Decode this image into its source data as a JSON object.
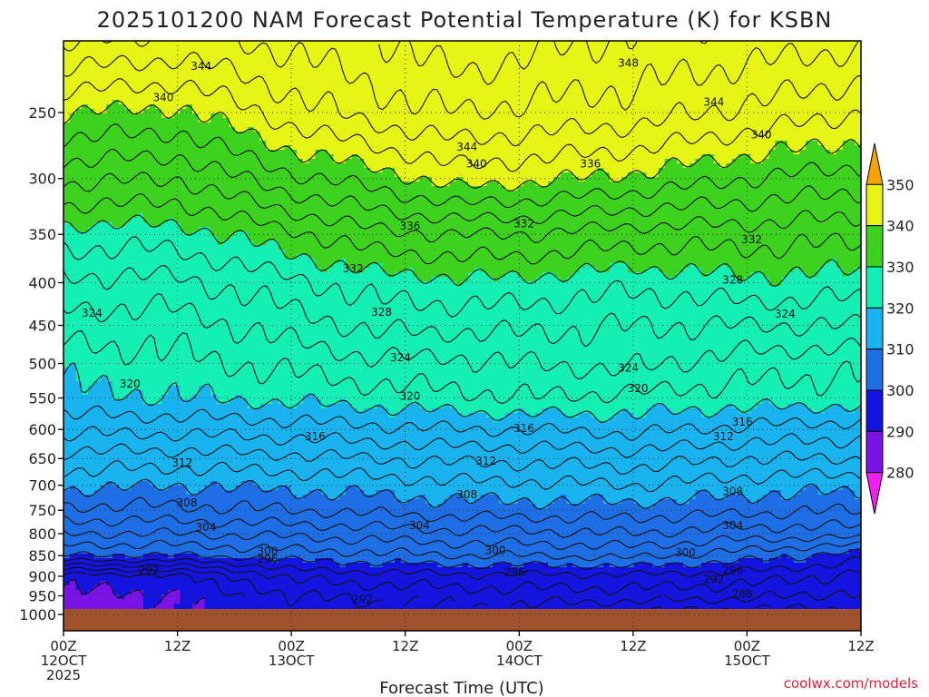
{
  "chart_data": {
    "type": "contour",
    "title": "2025101200 NAM Forecast Potential Temperature (K) for KSBN",
    "xlabel": "Forecast Time (UTC)",
    "ylabel": "",
    "y_ticks": [
      250,
      300,
      350,
      400,
      450,
      500,
      550,
      600,
      650,
      700,
      750,
      800,
      850,
      900,
      950,
      1000
    ],
    "y_range": [
      200,
      1050
    ],
    "x_ticks": [
      {
        "hour": 0,
        "line1": "00Z",
        "line2": "12OCT",
        "line3": "2025"
      },
      {
        "hour": 12,
        "line1": "12Z",
        "line2": "",
        "line3": ""
      },
      {
        "hour": 24,
        "line1": "00Z",
        "line2": "13OCT",
        "line3": ""
      },
      {
        "hour": 36,
        "line1": "12Z",
        "line2": "",
        "line3": ""
      },
      {
        "hour": 48,
        "line1": "00Z",
        "line2": "14OCT",
        "line3": ""
      },
      {
        "hour": 60,
        "line1": "12Z",
        "line2": "",
        "line3": ""
      },
      {
        "hour": 72,
        "line1": "00Z",
        "line2": "15OCT",
        "line3": ""
      },
      {
        "hour": 84,
        "line1": "12Z",
        "line2": "",
        "line3": ""
      }
    ],
    "x_range": [
      0,
      84
    ],
    "colorbar": {
      "levels": [
        280,
        290,
        300,
        310,
        320,
        330,
        340,
        350
      ],
      "labels": [
        "280",
        "290",
        "300",
        "310",
        "320",
        "330",
        "340",
        "350"
      ],
      "colors": [
        "#f21ef2",
        "#7a14e6",
        "#1414e0",
        "#1e6fe6",
        "#19b4f0",
        "#14f0b4",
        "#3cd21e",
        "#e6f514",
        "#f5a500"
      ]
    },
    "ground_pressure": 985,
    "contour_interval_k": 2,
    "theta_profiles": [
      {
        "hour": 0,
        "pressures": [
          200,
          250,
          300,
          350,
          400,
          450,
          500,
          550,
          600,
          650,
          700,
          750,
          800,
          850,
          900,
          950,
          985
        ],
        "theta": [
          347,
          340,
          334.5,
          329,
          325.5,
          323,
          320.8,
          319.5,
          316.5,
          313.2,
          310.5,
          307.5,
          304,
          300,
          291,
          289.5,
          289
        ]
      },
      {
        "hour": 12,
        "pressures": [
          200,
          250,
          300,
          350,
          400,
          450,
          500,
          550,
          600,
          650,
          700,
          750,
          800,
          850,
          900,
          950,
          985
        ],
        "theta": [
          346,
          339.5,
          334,
          329,
          325.5,
          323,
          321.5,
          320,
          316.5,
          313,
          310,
          307.5,
          304,
          300,
          291.5,
          290,
          289.5
        ]
      },
      {
        "hour": 24,
        "pressures": [
          200,
          250,
          300,
          350,
          400,
          450,
          500,
          550,
          600,
          650,
          700,
          750,
          800,
          850,
          900,
          950,
          985
        ],
        "theta": [
          347,
          343,
          337.5,
          331.5,
          327.5,
          325,
          322.5,
          320.5,
          317,
          313.5,
          310.5,
          308,
          304.5,
          301,
          296.5,
          294,
          293
        ]
      },
      {
        "hour": 33,
        "pressures": [
          200,
          250,
          300,
          350,
          400,
          450,
          500,
          550,
          600,
          650,
          700,
          750,
          800,
          850,
          900,
          950,
          985
        ],
        "theta": [
          348,
          345,
          339,
          333.5,
          329,
          326.5,
          323.5,
          321,
          317.5,
          314,
          311,
          308.5,
          305,
          301.5,
          297,
          294.5,
          293.5
        ]
      },
      {
        "hour": 42,
        "pressures": [
          200,
          250,
          300,
          350,
          400,
          450,
          500,
          550,
          600,
          650,
          700,
          750,
          800,
          850,
          900,
          950,
          985
        ],
        "theta": [
          350,
          346,
          341,
          334,
          329.5,
          326.5,
          323.5,
          321.5,
          318,
          314.5,
          311.5,
          309,
          305.5,
          302,
          297.5,
          295,
          294
        ]
      },
      {
        "hour": 48,
        "pressures": [
          200,
          250,
          300,
          350,
          400,
          450,
          500,
          550,
          600,
          650,
          700,
          750,
          800,
          850,
          900,
          950,
          985
        ],
        "theta": [
          349,
          345.5,
          340.5,
          334,
          329.5,
          326.5,
          324,
          322,
          318,
          314.5,
          311.5,
          309,
          305.5,
          302,
          297.5,
          295,
          293.5
        ]
      },
      {
        "hour": 60,
        "pressures": [
          200,
          250,
          300,
          350,
          400,
          450,
          500,
          550,
          600,
          650,
          700,
          750,
          800,
          850,
          900,
          950,
          985
        ],
        "theta": [
          348,
          345,
          339.5,
          333,
          328.5,
          326,
          324.5,
          321.5,
          318.5,
          315,
          312,
          309,
          306,
          302.5,
          297.5,
          295,
          292.5
        ]
      },
      {
        "hour": 72,
        "pressures": [
          200,
          250,
          300,
          350,
          400,
          450,
          500,
          550,
          600,
          650,
          700,
          750,
          800,
          850,
          900,
          950,
          985
        ],
        "theta": [
          347.5,
          343.5,
          338,
          333,
          329.5,
          326,
          323,
          321,
          317.5,
          314,
          311,
          308.5,
          305,
          301,
          297,
          294.5,
          292
        ]
      },
      {
        "hour": 84,
        "pressures": [
          200,
          250,
          300,
          350,
          400,
          450,
          500,
          550,
          600,
          650,
          700,
          750,
          800,
          850,
          900,
          950,
          985
        ],
        "theta": [
          347,
          342,
          337,
          332.5,
          329,
          326,
          322.5,
          321,
          317,
          314,
          310.5,
          308,
          305,
          299,
          295.5,
          293.5,
          292
        ]
      }
    ],
    "contour_labels": [
      {
        "value": "344",
        "hour": 14.5,
        "p": 220
      },
      {
        "value": "348",
        "hour": 59.5,
        "p": 218
      },
      {
        "value": "340",
        "hour": 10.5,
        "p": 240
      },
      {
        "value": "344",
        "hour": 68.5,
        "p": 243
      },
      {
        "value": "344",
        "hour": 42.5,
        "p": 275
      },
      {
        "value": "340",
        "hour": 73.5,
        "p": 266
      },
      {
        "value": "340",
        "hour": 43.5,
        "p": 288
      },
      {
        "value": "336",
        "hour": 55.5,
        "p": 288
      },
      {
        "value": "336",
        "hour": 36.5,
        "p": 342
      },
      {
        "value": "332",
        "hour": 48.5,
        "p": 340
      },
      {
        "value": "332",
        "hour": 72.5,
        "p": 355
      },
      {
        "value": "332",
        "hour": 30.5,
        "p": 385
      },
      {
        "value": "328",
        "hour": 70.5,
        "p": 397
      },
      {
        "value": "324",
        "hour": 3,
        "p": 435
      },
      {
        "value": "328",
        "hour": 33.5,
        "p": 434
      },
      {
        "value": "324",
        "hour": 76,
        "p": 436
      },
      {
        "value": "324",
        "hour": 35.5,
        "p": 492
      },
      {
        "value": "324",
        "hour": 59.5,
        "p": 506
      },
      {
        "value": "320",
        "hour": 7,
        "p": 529
      },
      {
        "value": "320",
        "hour": 36.5,
        "p": 547
      },
      {
        "value": "320",
        "hour": 60.5,
        "p": 536
      },
      {
        "value": "316",
        "hour": 71.5,
        "p": 588
      },
      {
        "value": "316",
        "hour": 48.5,
        "p": 598
      },
      {
        "value": "316",
        "hour": 26.5,
        "p": 612
      },
      {
        "value": "312",
        "hour": 69.5,
        "p": 612
      },
      {
        "value": "312",
        "hour": 12.5,
        "p": 658
      },
      {
        "value": "312",
        "hour": 44.5,
        "p": 655
      },
      {
        "value": "308",
        "hour": 42.5,
        "p": 718
      },
      {
        "value": "308",
        "hour": 70.5,
        "p": 712
      },
      {
        "value": "308",
        "hour": 13,
        "p": 735
      },
      {
        "value": "304",
        "hour": 15,
        "p": 786
      },
      {
        "value": "304",
        "hour": 37.5,
        "p": 782
      },
      {
        "value": "304",
        "hour": 70.5,
        "p": 782
      },
      {
        "value": "300",
        "hour": 21.5,
        "p": 840
      },
      {
        "value": "296",
        "hour": 21.5,
        "p": 858
      },
      {
        "value": "300",
        "hour": 45.5,
        "p": 838
      },
      {
        "value": "300",
        "hour": 65.5,
        "p": 843
      },
      {
        "value": "292",
        "hour": 9,
        "p": 885
      },
      {
        "value": "296",
        "hour": 47.5,
        "p": 890
      },
      {
        "value": "296",
        "hour": 70.5,
        "p": 885
      },
      {
        "value": "292",
        "hour": 68.5,
        "p": 908
      },
      {
        "value": "288",
        "hour": 71.5,
        "p": 945
      },
      {
        "value": "292",
        "hour": 31.5,
        "p": 960
      }
    ]
  },
  "credit": "coolwx.com/models"
}
